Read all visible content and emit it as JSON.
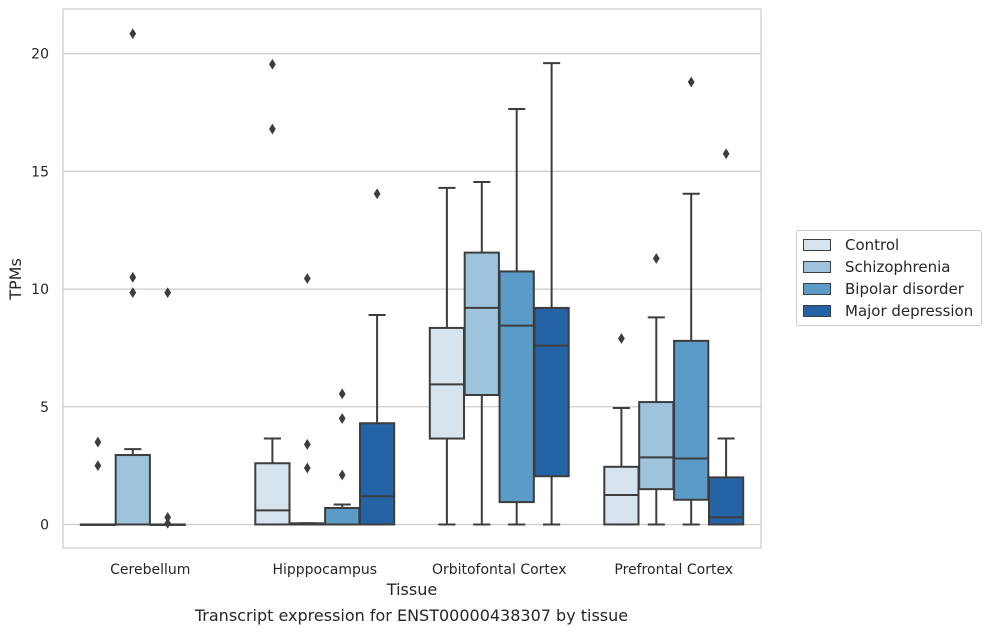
{
  "chart_data": {
    "type": "box",
    "xlabel": "Tissue",
    "ylabel": "TPMs",
    "ylim": [
      -1,
      21.9
    ],
    "yticks": [
      0,
      5,
      10,
      15,
      20
    ],
    "grid": "horizontal",
    "legend_position": "right",
    "categories": [
      "Cerebellum",
      "Hipppocampus",
      "Orbitofontal Cortex",
      "Prefrontal Cortex"
    ],
    "series": [
      {
        "name": "Control",
        "color": "#d6e4f0",
        "boxes": [
          {
            "whislo": 0,
            "q1": 0,
            "med": 0,
            "q3": 0,
            "whishi": 0,
            "fliers": [
              3.5,
              2.5
            ]
          },
          {
            "whislo": 0,
            "q1": 0,
            "med": 0.6,
            "q3": 2.6,
            "whishi": 3.65,
            "fliers": [
              19.55,
              16.8
            ]
          },
          {
            "whislo": 0,
            "q1": 3.65,
            "med": 5.95,
            "q3": 8.35,
            "whishi": 14.3,
            "fliers": []
          },
          {
            "whislo": 0,
            "q1": 0,
            "med": 1.25,
            "q3": 2.45,
            "whishi": 4.95,
            "fliers": [
              7.9
            ]
          }
        ]
      },
      {
        "name": "Schizophrenia",
        "color": "#9dc3dd",
        "boxes": [
          {
            "whislo": 0,
            "q1": 0,
            "med": 0,
            "q3": 2.95,
            "whishi": 3.2,
            "fliers": [
              20.85,
              10.5,
              9.85
            ]
          },
          {
            "whislo": 0,
            "q1": 0,
            "med": 0,
            "q3": 0.05,
            "whishi": 0.05,
            "fliers": [
              10.45,
              3.4,
              2.4
            ]
          },
          {
            "whislo": 0,
            "q1": 5.5,
            "med": 9.2,
            "q3": 11.55,
            "whishi": 14.55,
            "fliers": []
          },
          {
            "whislo": 0,
            "q1": 1.5,
            "med": 2.85,
            "q3": 5.2,
            "whishi": 8.8,
            "fliers": [
              11.3
            ]
          }
        ]
      },
      {
        "name": "Bipolar disorder",
        "color": "#5b9bc8",
        "boxes": [
          {
            "whislo": 0,
            "q1": 0,
            "med": 0,
            "q3": 0,
            "whishi": 0,
            "fliers": [
              9.85,
              0.3,
              0.05
            ]
          },
          {
            "whislo": 0,
            "q1": 0,
            "med": 0,
            "q3": 0.7,
            "whishi": 0.85,
            "fliers": [
              5.55,
              4.5,
              2.1
            ]
          },
          {
            "whislo": 0,
            "q1": 0.95,
            "med": 8.45,
            "q3": 10.75,
            "whishi": 17.65,
            "fliers": []
          },
          {
            "whislo": 0,
            "q1": 1.05,
            "med": 2.8,
            "q3": 7.8,
            "whishi": 14.05,
            "fliers": [
              18.8
            ]
          }
        ]
      },
      {
        "name": "Major depression",
        "color": "#2464a6",
        "boxes": [
          null,
          {
            "whislo": 0,
            "q1": 0,
            "med": 1.2,
            "q3": 4.3,
            "whishi": 8.9,
            "fliers": [
              14.05
            ]
          },
          {
            "whislo": 0,
            "q1": 2.05,
            "med": 7.6,
            "q3": 9.2,
            "whishi": 19.6,
            "fliers": []
          },
          {
            "whislo": 0,
            "q1": 0,
            "med": 0.3,
            "q3": 2.0,
            "whishi": 3.65,
            "fliers": [
              15.75
            ]
          }
        ]
      }
    ]
  },
  "caption": "Transcript expression for ENST00000438307 by tissue"
}
